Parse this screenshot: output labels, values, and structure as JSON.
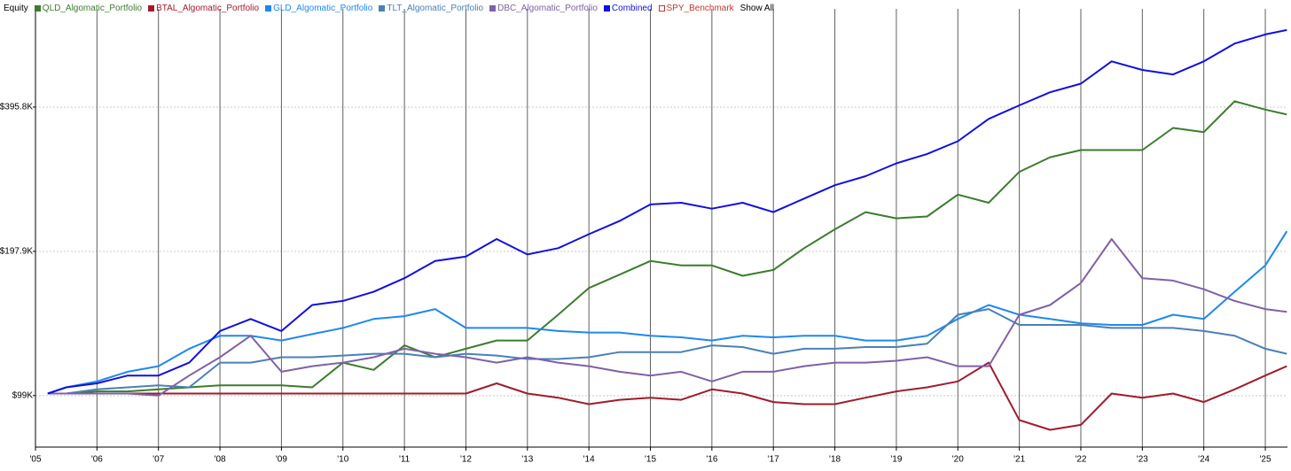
{
  "chart_data": {
    "type": "line",
    "y_title": "Equity",
    "log_scale": true,
    "grid": true,
    "legend_position": "top-left",
    "show_all": "Show All",
    "xlim": [
      2005,
      2025.36
    ],
    "xticks": [
      {
        "value": 2005,
        "label": "'05"
      },
      {
        "value": 2006,
        "label": "'06"
      },
      {
        "value": 2007,
        "label": "'07"
      },
      {
        "value": 2008,
        "label": "'08"
      },
      {
        "value": 2009,
        "label": "'09"
      },
      {
        "value": 2010,
        "label": "'10"
      },
      {
        "value": 2011,
        "label": "'11"
      },
      {
        "value": 2012,
        "label": "'12"
      },
      {
        "value": 2013,
        "label": "'13"
      },
      {
        "value": 2014,
        "label": "'14"
      },
      {
        "value": 2015,
        "label": "'15"
      },
      {
        "value": 2016,
        "label": "'16"
      },
      {
        "value": 2017,
        "label": "'17"
      },
      {
        "value": 2018,
        "label": "'18"
      },
      {
        "value": 2019,
        "label": "'19"
      },
      {
        "value": 2020,
        "label": "'20"
      },
      {
        "value": 2021,
        "label": "'21"
      },
      {
        "value": 2022,
        "label": "'22"
      },
      {
        "value": 2023,
        "label": "'23"
      },
      {
        "value": 2024,
        "label": "'24"
      },
      {
        "value": 2025,
        "label": "'25"
      }
    ],
    "ylim": [
      77300,
      608000
    ],
    "yticks": [
      {
        "value": 99000,
        "label": "$99K"
      },
      {
        "value": 197900,
        "label": "$197.9K"
      },
      {
        "value": 395800,
        "label": "$395.8K"
      }
    ],
    "x": [
      2005.2,
      2005.5,
      2006,
      2006.5,
      2007,
      2007.5,
      2008,
      2008.5,
      2009,
      2009.5,
      2010,
      2010.5,
      2011,
      2011.5,
      2012,
      2012.5,
      2013,
      2013.5,
      2014,
      2014.5,
      2015,
      2015.5,
      2016,
      2016.5,
      2017,
      2017.5,
      2018,
      2018.5,
      2019,
      2019.5,
      2020,
      2020.5,
      2021,
      2021.5,
      2022,
      2022.5,
      2023,
      2023.5,
      2024,
      2024.5,
      2025,
      2025.35
    ],
    "series": [
      {
        "name": "QLD_Algomatic_Portfolio",
        "color": "#3a7d2c",
        "values": [
          100000,
          100000,
          101000,
          101000,
          102000,
          103000,
          104000,
          104000,
          104000,
          103000,
          116000,
          112000,
          126000,
          119000,
          124000,
          129000,
          129000,
          146000,
          166000,
          177000,
          189000,
          185000,
          185000,
          176000,
          181000,
          201000,
          220000,
          239000,
          232000,
          234000,
          260000,
          250000,
          290000,
          311000,
          322000,
          322000,
          322000,
          358000,
          351000,
          407000,
          391000,
          382000
        ]
      },
      {
        "name": "BTAL_Algomatic_Portfolio",
        "color": "#a01c2c",
        "values": [
          100000,
          100000,
          100000,
          100000,
          100000,
          100000,
          100000,
          100000,
          100000,
          100000,
          100000,
          100000,
          100000,
          100000,
          100000,
          105000,
          100000,
          98000,
          95000,
          97000,
          98000,
          97000,
          102000,
          100000,
          96000,
          95000,
          95000,
          98000,
          101000,
          103000,
          106000,
          116000,
          88000,
          84000,
          86000,
          100000,
          98000,
          100000,
          96000,
          102000,
          109000,
          114000
        ]
      },
      {
        "name": "GLD_Algomatic_Portfolio",
        "color": "#1e88f0",
        "values": [
          100000,
          103000,
          106000,
          111000,
          114000,
          124000,
          132000,
          132000,
          129000,
          133000,
          137000,
          143000,
          145000,
          150000,
          137000,
          137000,
          137000,
          135000,
          134000,
          134000,
          132000,
          131000,
          129000,
          132000,
          131000,
          132000,
          132000,
          129000,
          129000,
          132000,
          143000,
          153000,
          146000,
          143000,
          140000,
          139000,
          139000,
          146000,
          143000,
          163000,
          185000,
          218000
        ]
      },
      {
        "name": "TLT_Algomatic_Portfolio",
        "color": "#4a80b8",
        "values": [
          100000,
          100000,
          102000,
          103000,
          104000,
          103000,
          116000,
          116000,
          119000,
          119000,
          120000,
          121000,
          121000,
          119000,
          121000,
          120000,
          118000,
          118000,
          119000,
          122000,
          122000,
          122000,
          126000,
          125000,
          121000,
          124000,
          124000,
          125000,
          125000,
          127000,
          146000,
          150000,
          139000,
          139000,
          139000,
          137000,
          137000,
          137000,
          135000,
          132000,
          124000,
          121000
        ]
      },
      {
        "name": "DBC_Algomatic_Portfolio",
        "color": "#8060a8",
        "values": [
          100000,
          100000,
          100000,
          100000,
          99000,
          109000,
          119000,
          132000,
          111000,
          114000,
          116000,
          119000,
          124000,
          121000,
          119000,
          116000,
          119000,
          116000,
          114000,
          111000,
          109000,
          111000,
          106000,
          111000,
          111000,
          114000,
          116000,
          116000,
          117000,
          119000,
          114000,
          114000,
          146000,
          153000,
          170000,
          210000,
          174000,
          172000,
          165000,
          156000,
          150000,
          148000
        ]
      },
      {
        "name": "Combined",
        "color": "#1010e0",
        "values": [
          100000,
          103000,
          105000,
          109000,
          109000,
          116000,
          135000,
          143000,
          135000,
          153000,
          156000,
          163000,
          174000,
          189000,
          193000,
          210000,
          195000,
          201000,
          215000,
          229000,
          248000,
          250000,
          243000,
          250000,
          239000,
          255000,
          272000,
          284000,
          302000,
          316000,
          336000,
          374000,
          399000,
          425000,
          443000,
          493000,
          473000,
          463000,
          493000,
          537000,
          561000,
          573000
        ]
      }
    ],
    "hidden_series": [
      {
        "name": "SPY_Benchmark",
        "color": "#c0392b"
      }
    ]
  }
}
